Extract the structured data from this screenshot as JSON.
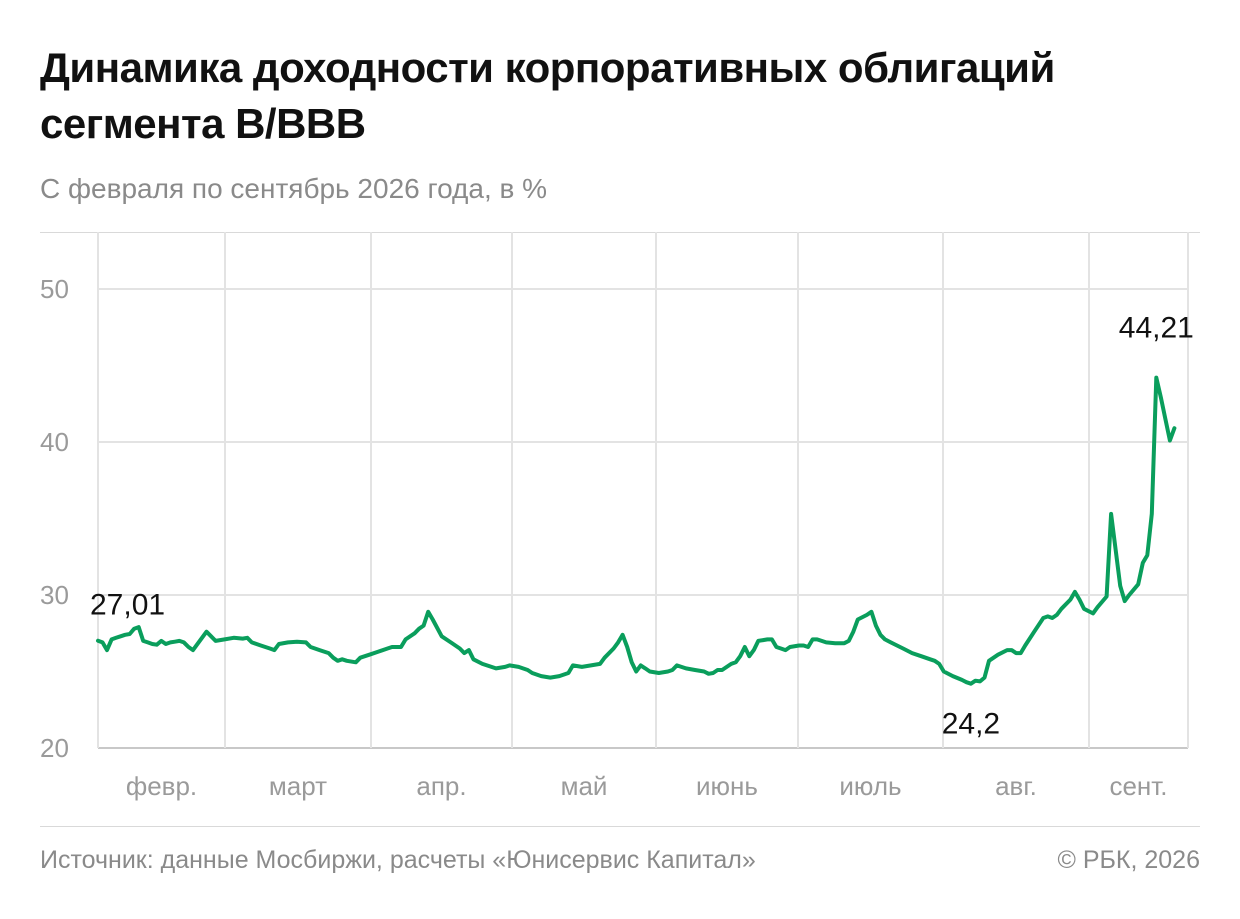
{
  "header": {
    "title": "Динамика доходности корпоративных облигаций сегмента B/BBB",
    "subtitle": "С февраля по сентябрь 2026 года, в %"
  },
  "footer": {
    "source": "Источник: данные Мосбиржи, расчеты «Юнисервис Капитал»",
    "copyright": "© РБК, 2026"
  },
  "chart_data": {
    "type": "line",
    "title": "Динамика доходности корпоративных облигаций сегмента B/BBB",
    "subtitle": "С февраля по сентябрь 2026 года, в %",
    "xlabel": "",
    "ylabel": "",
    "ylim": [
      20,
      50
    ],
    "yticks": [
      20,
      30,
      40,
      50
    ],
    "grid": true,
    "line_color": "#0a9e5c",
    "x_ticks": [
      "февр.",
      "март",
      "апр.",
      "май",
      "июнь",
      "июль",
      "авг.",
      "сент."
    ],
    "x_domain": [
      "2026-02-01",
      "2026-09-30"
    ],
    "series": [
      {
        "name": "",
        "points": [
          [
            "2026-02-01",
            27.01
          ],
          [
            "2026-02-02",
            26.9
          ],
          [
            "2026-02-03",
            26.4
          ],
          [
            "2026-02-04",
            27.1
          ],
          [
            "2026-02-05",
            27.2
          ],
          [
            "2026-02-06",
            27.3
          ],
          [
            "2026-02-07",
            27.4
          ],
          [
            "2026-02-08",
            27.45
          ],
          [
            "2026-02-09",
            27.8
          ],
          [
            "2026-02-10",
            27.9
          ],
          [
            "2026-02-11",
            27.0
          ],
          [
            "2026-02-12",
            26.9
          ],
          [
            "2026-02-13",
            26.8
          ],
          [
            "2026-02-14",
            26.75
          ],
          [
            "2026-02-15",
            27.0
          ],
          [
            "2026-02-16",
            26.8
          ],
          [
            "2026-02-17",
            26.9
          ],
          [
            "2026-02-18",
            26.95
          ],
          [
            "2026-02-19",
            27.0
          ],
          [
            "2026-02-20",
            26.9
          ],
          [
            "2026-02-21",
            26.6
          ],
          [
            "2026-02-22",
            26.4
          ],
          [
            "2026-02-24",
            27.2
          ],
          [
            "2026-02-25",
            27.6
          ],
          [
            "2026-02-26",
            27.3
          ],
          [
            "2026-02-27",
            27.0
          ],
          [
            "2026-03-01",
            27.1
          ],
          [
            "2026-03-03",
            27.2
          ],
          [
            "2026-03-05",
            27.15
          ],
          [
            "2026-03-06",
            27.2
          ],
          [
            "2026-03-07",
            26.9
          ],
          [
            "2026-03-09",
            26.7
          ],
          [
            "2026-03-11",
            26.5
          ],
          [
            "2026-03-12",
            26.4
          ],
          [
            "2026-03-13",
            26.8
          ],
          [
            "2026-03-15",
            26.9
          ],
          [
            "2026-03-17",
            26.95
          ],
          [
            "2026-03-19",
            26.9
          ],
          [
            "2026-03-20",
            26.6
          ],
          [
            "2026-03-22",
            26.4
          ],
          [
            "2026-03-24",
            26.2
          ],
          [
            "2026-03-25",
            25.9
          ],
          [
            "2026-03-26",
            25.7
          ],
          [
            "2026-03-27",
            25.8
          ],
          [
            "2026-03-28",
            25.7
          ],
          [
            "2026-03-30",
            25.6
          ],
          [
            "2026-03-31",
            25.9
          ],
          [
            "2026-04-02",
            26.1
          ],
          [
            "2026-04-04",
            26.3
          ],
          [
            "2026-04-06",
            26.5
          ],
          [
            "2026-04-07",
            26.6
          ],
          [
            "2026-04-08",
            26.6
          ],
          [
            "2026-04-09",
            26.6
          ],
          [
            "2026-04-10",
            27.1
          ],
          [
            "2026-04-12",
            27.5
          ],
          [
            "2026-04-13",
            27.8
          ],
          [
            "2026-04-14",
            28.0
          ],
          [
            "2026-04-15",
            28.9
          ],
          [
            "2026-04-16",
            28.4
          ],
          [
            "2026-04-18",
            27.3
          ],
          [
            "2026-04-20",
            26.9
          ],
          [
            "2026-04-22",
            26.5
          ],
          [
            "2026-04-23",
            26.2
          ],
          [
            "2026-04-24",
            26.4
          ],
          [
            "2026-04-25",
            25.8
          ],
          [
            "2026-04-27",
            25.5
          ],
          [
            "2026-04-29",
            25.3
          ],
          [
            "2026-04-30",
            25.2
          ],
          [
            "2026-05-02",
            25.3
          ],
          [
            "2026-05-03",
            25.4
          ],
          [
            "2026-05-05",
            25.3
          ],
          [
            "2026-05-07",
            25.1
          ],
          [
            "2026-05-08",
            24.9
          ],
          [
            "2026-05-10",
            24.7
          ],
          [
            "2026-05-12",
            24.6
          ],
          [
            "2026-05-14",
            24.7
          ],
          [
            "2026-05-16",
            24.9
          ],
          [
            "2026-05-17",
            25.4
          ],
          [
            "2026-05-18",
            25.35
          ],
          [
            "2026-05-19",
            25.3
          ],
          [
            "2026-05-21",
            25.4
          ],
          [
            "2026-05-23",
            25.5
          ],
          [
            "2026-05-24",
            25.9
          ],
          [
            "2026-05-26",
            26.5
          ],
          [
            "2026-05-27",
            26.9
          ],
          [
            "2026-05-28",
            27.4
          ],
          [
            "2026-05-29",
            26.6
          ],
          [
            "2026-05-30",
            25.6
          ],
          [
            "2026-05-31",
            25.0
          ],
          [
            "2026-06-01",
            25.4
          ],
          [
            "2026-06-02",
            25.2
          ],
          [
            "2026-06-03",
            25.0
          ],
          [
            "2026-06-05",
            24.9
          ],
          [
            "2026-06-07",
            25.0
          ],
          [
            "2026-06-08",
            25.1
          ],
          [
            "2026-06-09",
            25.4
          ],
          [
            "2026-06-10",
            25.3
          ],
          [
            "2026-06-11",
            25.2
          ],
          [
            "2026-06-13",
            25.1
          ],
          [
            "2026-06-15",
            25.0
          ],
          [
            "2026-06-16",
            24.85
          ],
          [
            "2026-06-17",
            24.9
          ],
          [
            "2026-06-18",
            25.1
          ],
          [
            "2026-06-19",
            25.1
          ],
          [
            "2026-06-21",
            25.5
          ],
          [
            "2026-06-22",
            25.6
          ],
          [
            "2026-06-23",
            26.0
          ],
          [
            "2026-06-24",
            26.6
          ],
          [
            "2026-06-25",
            26.0
          ],
          [
            "2026-06-26",
            26.4
          ],
          [
            "2026-06-27",
            27.0
          ],
          [
            "2026-06-29",
            27.1
          ],
          [
            "2026-06-30",
            27.1
          ],
          [
            "2026-07-01",
            26.6
          ],
          [
            "2026-07-02",
            26.5
          ],
          [
            "2026-07-03",
            26.4
          ],
          [
            "2026-07-04",
            26.6
          ],
          [
            "2026-07-06",
            26.7
          ],
          [
            "2026-07-07",
            26.7
          ],
          [
            "2026-07-08",
            26.6
          ],
          [
            "2026-07-09",
            27.1
          ],
          [
            "2026-07-10",
            27.1
          ],
          [
            "2026-07-11",
            27.0
          ],
          [
            "2026-07-12",
            26.9
          ],
          [
            "2026-07-14",
            26.85
          ],
          [
            "2026-07-16",
            26.85
          ],
          [
            "2026-07-17",
            27.0
          ],
          [
            "2026-07-18",
            27.6
          ],
          [
            "2026-07-19",
            28.4
          ],
          [
            "2026-07-21",
            28.7
          ],
          [
            "2026-07-22",
            28.9
          ],
          [
            "2026-07-23",
            28.0
          ],
          [
            "2026-07-24",
            27.4
          ],
          [
            "2026-07-25",
            27.1
          ],
          [
            "2026-07-27",
            26.8
          ],
          [
            "2026-07-29",
            26.5
          ],
          [
            "2026-07-31",
            26.2
          ],
          [
            "2026-08-02",
            26.0
          ],
          [
            "2026-08-04",
            25.8
          ],
          [
            "2026-08-05",
            25.7
          ],
          [
            "2026-08-06",
            25.5
          ],
          [
            "2026-08-07",
            25.0
          ],
          [
            "2026-08-09",
            24.7
          ],
          [
            "2026-08-11",
            24.45
          ],
          [
            "2026-08-12",
            24.3
          ],
          [
            "2026-08-13",
            24.2
          ],
          [
            "2026-08-14",
            24.4
          ],
          [
            "2026-08-15",
            24.35
          ],
          [
            "2026-08-16",
            24.6
          ],
          [
            "2026-08-17",
            25.7
          ],
          [
            "2026-08-19",
            26.1
          ],
          [
            "2026-08-21",
            26.4
          ],
          [
            "2026-08-22",
            26.4
          ],
          [
            "2026-08-23",
            26.2
          ],
          [
            "2026-08-24",
            26.2
          ],
          [
            "2026-08-25",
            26.7
          ],
          [
            "2026-08-27",
            27.6
          ],
          [
            "2026-08-29",
            28.5
          ],
          [
            "2026-08-30",
            28.6
          ],
          [
            "2026-08-31",
            28.5
          ],
          [
            "2026-09-01",
            28.7
          ],
          [
            "2026-09-02",
            29.1
          ],
          [
            "2026-09-04",
            29.7
          ],
          [
            "2026-09-05",
            30.2
          ],
          [
            "2026-09-06",
            29.7
          ],
          [
            "2026-09-07",
            29.1
          ],
          [
            "2026-09-09",
            28.8
          ],
          [
            "2026-09-10",
            29.2
          ],
          [
            "2026-09-12",
            29.9
          ],
          [
            "2026-09-13",
            35.3
          ],
          [
            "2026-09-15",
            30.6
          ],
          [
            "2026-09-16",
            29.6
          ],
          [
            "2026-09-17",
            30.0
          ],
          [
            "2026-09-19",
            30.7
          ],
          [
            "2026-09-20",
            32.1
          ],
          [
            "2026-09-21",
            32.6
          ],
          [
            "2026-09-22",
            35.3
          ],
          [
            "2026-09-23",
            44.21
          ],
          [
            "2026-09-24",
            42.9
          ],
          [
            "2026-09-25",
            41.5
          ],
          [
            "2026-09-26",
            40.1
          ],
          [
            "2026-09-27",
            40.9
          ]
        ]
      }
    ],
    "annotations": [
      {
        "text": "27,01",
        "x": "2026-02-01",
        "y": 27.01
      },
      {
        "text": "24,2",
        "x": "2026-08-13",
        "y": 24.2
      },
      {
        "text": "44,21",
        "x": "2026-09-23",
        "y": 44.21
      }
    ]
  }
}
